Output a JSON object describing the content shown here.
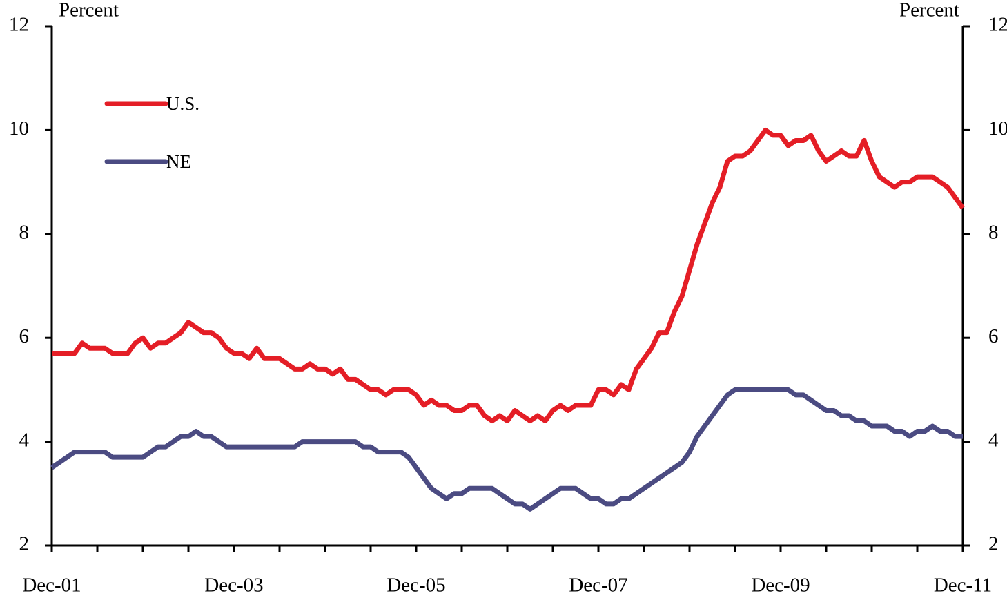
{
  "chart_data": {
    "type": "line",
    "y_label": "Percent",
    "y2_label": "Percent",
    "categories": [
      "Dec-01",
      null,
      null,
      null,
      null,
      null,
      null,
      null,
      null,
      null,
      null,
      null,
      null,
      null,
      null,
      null,
      null,
      null,
      null,
      null,
      null,
      null,
      null,
      null,
      "Dec-03",
      null,
      null,
      null,
      null,
      null,
      null,
      null,
      null,
      null,
      null,
      null,
      null,
      null,
      null,
      null,
      null,
      null,
      null,
      null,
      null,
      null,
      null,
      null,
      "Dec-05",
      null,
      null,
      null,
      null,
      null,
      null,
      null,
      null,
      null,
      null,
      null,
      null,
      null,
      null,
      null,
      null,
      null,
      null,
      null,
      null,
      null,
      null,
      null,
      "Dec-07",
      null,
      null,
      null,
      null,
      null,
      null,
      null,
      null,
      null,
      null,
      null,
      null,
      null,
      null,
      null,
      null,
      null,
      null,
      null,
      null,
      null,
      null,
      null,
      "Dec-09",
      null,
      null,
      null,
      null,
      null,
      null,
      null,
      null,
      null,
      null,
      null,
      null,
      null,
      null,
      null,
      null,
      null,
      null,
      null,
      null,
      null,
      null,
      null,
      "Dec-11"
    ],
    "series": [
      {
        "name": "U.S.",
        "color": "#e41e26",
        "values": [
          5.7,
          5.7,
          5.7,
          5.7,
          5.9,
          5.8,
          5.8,
          5.8,
          5.7,
          5.7,
          5.7,
          5.9,
          6.0,
          5.8,
          5.9,
          5.9,
          6.0,
          6.1,
          6.3,
          6.2,
          6.1,
          6.1,
          6.0,
          5.8,
          5.7,
          5.7,
          5.6,
          5.8,
          5.6,
          5.6,
          5.6,
          5.5,
          5.4,
          5.4,
          5.5,
          5.4,
          5.4,
          5.3,
          5.4,
          5.2,
          5.2,
          5.1,
          5.0,
          5.0,
          4.9,
          5.0,
          5.0,
          5.0,
          4.9,
          4.7,
          4.8,
          4.7,
          4.7,
          4.6,
          4.6,
          4.7,
          4.7,
          4.5,
          4.4,
          4.5,
          4.4,
          4.6,
          4.5,
          4.4,
          4.5,
          4.4,
          4.6,
          4.7,
          4.6,
          4.7,
          4.7,
          4.7,
          5.0,
          5.0,
          4.9,
          5.1,
          5.0,
          5.4,
          5.6,
          5.8,
          6.1,
          6.1,
          6.5,
          6.8,
          7.3,
          7.8,
          8.2,
          8.6,
          8.9,
          9.4,
          9.5,
          9.5,
          9.6,
          9.8,
          10.0,
          9.9,
          9.9,
          9.7,
          9.8,
          9.8,
          9.9,
          9.6,
          9.4,
          9.5,
          9.6,
          9.5,
          9.5,
          9.8,
          9.4,
          9.1,
          9.0,
          8.9,
          9.0,
          9.0,
          9.1,
          9.1,
          9.1,
          9.0,
          8.9,
          8.7,
          8.5
        ]
      },
      {
        "name": "NE",
        "color": "#4b4b82",
        "values": [
          3.5,
          3.6,
          3.7,
          3.8,
          3.8,
          3.8,
          3.8,
          3.8,
          3.7,
          3.7,
          3.7,
          3.7,
          3.7,
          3.8,
          3.9,
          3.9,
          4.0,
          4.1,
          4.1,
          4.2,
          4.1,
          4.1,
          4.0,
          3.9,
          3.9,
          3.9,
          3.9,
          3.9,
          3.9,
          3.9,
          3.9,
          3.9,
          3.9,
          4.0,
          4.0,
          4.0,
          4.0,
          4.0,
          4.0,
          4.0,
          4.0,
          3.9,
          3.9,
          3.8,
          3.8,
          3.8,
          3.8,
          3.7,
          3.5,
          3.3,
          3.1,
          3.0,
          2.9,
          3.0,
          3.0,
          3.1,
          3.1,
          3.1,
          3.1,
          3.0,
          2.9,
          2.8,
          2.8,
          2.7,
          2.8,
          2.9,
          3.0,
          3.1,
          3.1,
          3.1,
          3.0,
          2.9,
          2.9,
          2.8,
          2.8,
          2.9,
          2.9,
          3.0,
          3.1,
          3.2,
          3.3,
          3.4,
          3.5,
          3.6,
          3.8,
          4.1,
          4.3,
          4.5,
          4.7,
          4.9,
          5.0,
          5.0,
          5.0,
          5.0,
          5.0,
          5.0,
          5.0,
          5.0,
          4.9,
          4.9,
          4.8,
          4.7,
          4.6,
          4.6,
          4.5,
          4.5,
          4.4,
          4.4,
          4.3,
          4.3,
          4.3,
          4.2,
          4.2,
          4.1,
          4.2,
          4.2,
          4.3,
          4.2,
          4.2,
          4.1,
          4.1
        ]
      }
    ],
    "ylim": [
      2,
      12
    ],
    "yticks": [
      2,
      4,
      6,
      8,
      10,
      12
    ],
    "y2lim": [
      2,
      12
    ],
    "y2ticks": [
      2,
      4,
      6,
      8,
      10,
      12
    ],
    "grid": false,
    "legend": "upper left"
  }
}
